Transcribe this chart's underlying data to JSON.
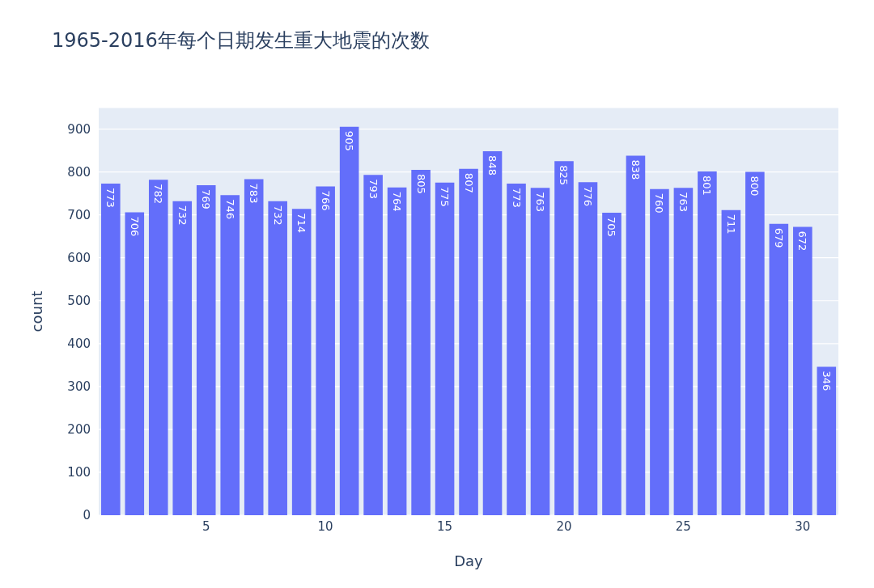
{
  "chart_data": {
    "type": "bar",
    "title": "1965-2016年每个日期发生重大地震的次数",
    "xlabel": "Day",
    "ylabel": "count",
    "x": [
      1,
      2,
      3,
      4,
      5,
      6,
      7,
      8,
      9,
      10,
      11,
      12,
      13,
      14,
      15,
      16,
      17,
      18,
      19,
      20,
      21,
      22,
      23,
      24,
      25,
      26,
      27,
      28,
      29,
      30,
      31
    ],
    "values": [
      773,
      706,
      782,
      732,
      769,
      746,
      783,
      732,
      714,
      766,
      905,
      793,
      764,
      805,
      775,
      807,
      848,
      773,
      763,
      825,
      776,
      705,
      838,
      760,
      763,
      801,
      711,
      800,
      679,
      672,
      346
    ],
    "color": "#636efa",
    "xlim": [
      0.5,
      31.5
    ],
    "xticks": [
      5,
      10,
      15,
      20,
      25,
      30
    ],
    "ylim": [
      0,
      950
    ],
    "yticks": [
      0,
      100,
      200,
      300,
      400,
      500,
      600,
      700,
      800,
      900
    ],
    "grid": "y",
    "data_labels": true
  }
}
